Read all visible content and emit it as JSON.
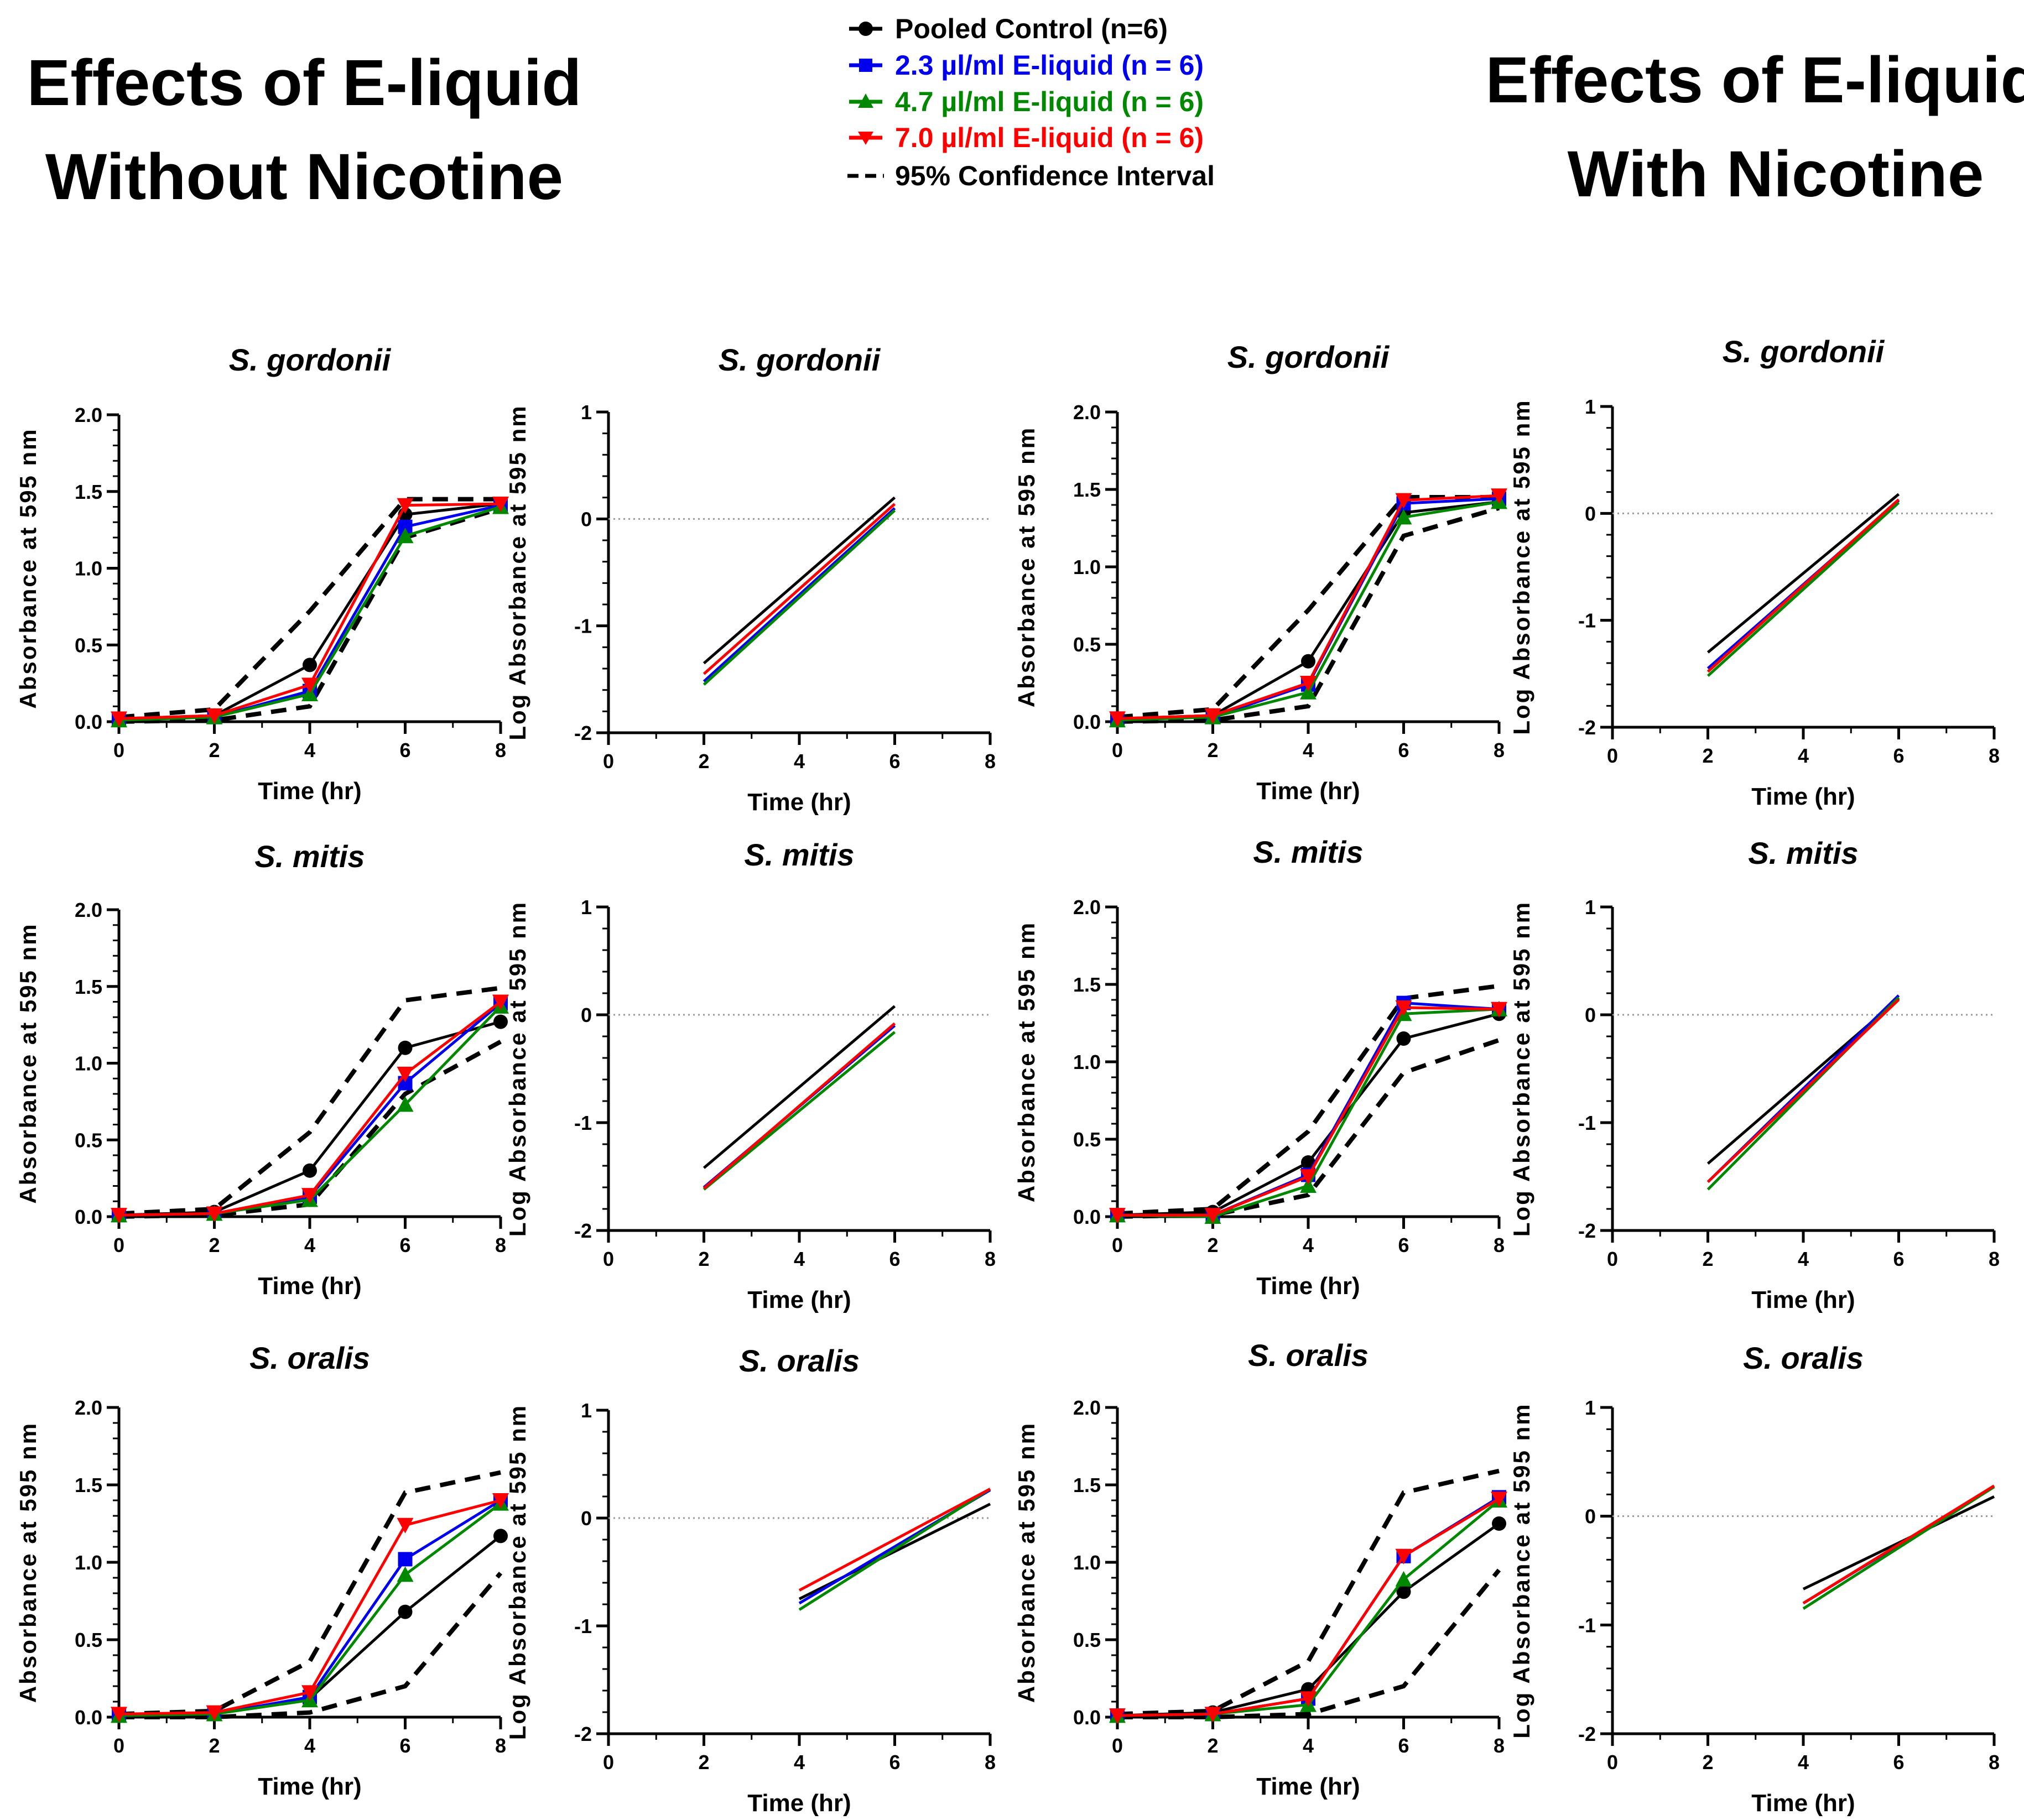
{
  "titles": {
    "left": [
      "Effects of E-liquid",
      "Without Nicotine"
    ],
    "right": [
      "Effects of E-liquid",
      "With Nicotine"
    ]
  },
  "legend": [
    {
      "label": "Pooled Control (n=6)",
      "color": "#000000",
      "marker": "circle"
    },
    {
      "label": "2.3 µl/ml E-liquid (n = 6)",
      "color": "#0000ee",
      "marker": "square"
    },
    {
      "label": "4.7 µl/ml E-liquid (n = 6)",
      "color": "#008800",
      "marker": "triangle-up"
    },
    {
      "label": "7.0 µl/ml E-liquid (n = 6)",
      "color": "#ff0000",
      "marker": "triangle-down"
    },
    {
      "label": "95% Confidence Interval",
      "color": "#000000",
      "marker": "dashed"
    }
  ],
  "colors": {
    "control": "#000000",
    "low": "#0000ee",
    "mid": "#008800",
    "high": "#ff0000",
    "ci": "#000000",
    "ref": "#999999"
  },
  "chart_data": [
    {
      "id": "wo-gordonii-abs",
      "type": "line",
      "title": "S. gordonii",
      "xlabel": "Time (hr)",
      "ylabel": "Absorbance at 595 nm",
      "xlim": [
        0,
        8
      ],
      "ylim": [
        0,
        2
      ],
      "xticks": [
        0,
        2,
        4,
        6,
        8
      ],
      "yticks": [
        "0.0",
        "0.5",
        "1.0",
        "1.5",
        "2.0"
      ],
      "x": [
        0,
        2,
        4,
        6,
        8
      ],
      "series": [
        {
          "name": "Pooled Control (n=6)",
          "color": "#000000",
          "marker": "circle",
          "values": [
            0.02,
            0.04,
            0.37,
            1.35,
            1.42
          ]
        },
        {
          "name": "2.3 µl/ml E-liquid (n = 6)",
          "color": "#0000ee",
          "marker": "square",
          "values": [
            0.02,
            0.03,
            0.2,
            1.27,
            1.41
          ]
        },
        {
          "name": "4.7 µl/ml E-liquid (n = 6)",
          "color": "#008800",
          "marker": "triangle-up",
          "values": [
            0.01,
            0.03,
            0.18,
            1.21,
            1.4
          ]
        },
        {
          "name": "7.0 µl/ml E-liquid (n = 6)",
          "color": "#ff0000",
          "marker": "triangle-down",
          "values": [
            0.02,
            0.04,
            0.24,
            1.41,
            1.42
          ]
        }
      ],
      "ci": [
        [
          0.03,
          0.08,
          0.72,
          1.45,
          1.45
        ],
        [
          0.0,
          0.01,
          0.1,
          1.2,
          1.39
        ]
      ]
    },
    {
      "id": "wo-gordonii-log",
      "type": "line",
      "title": "S. gordonii",
      "xlabel": "Time (hr)",
      "ylabel": "Log Absorbance at 595 nm",
      "xlim": [
        0,
        8
      ],
      "ylim": [
        -2,
        1
      ],
      "xticks": [
        0,
        2,
        4,
        6,
        8
      ],
      "yticks": [
        "-2",
        "-1",
        "0",
        "1"
      ],
      "refline": 0,
      "x": [
        2,
        6
      ],
      "series": [
        {
          "name": "Pooled Control (n=6)",
          "color": "#000000",
          "values": [
            -1.35,
            0.2
          ]
        },
        {
          "name": "2.3 µl/ml E-liquid (n = 6)",
          "color": "#0000ee",
          "values": [
            -1.52,
            0.1
          ]
        },
        {
          "name": "4.7 µl/ml E-liquid (n = 6)",
          "color": "#008800",
          "values": [
            -1.55,
            0.08
          ]
        },
        {
          "name": "7.0 µl/ml E-liquid (n = 6)",
          "color": "#ff0000",
          "values": [
            -1.45,
            0.14
          ]
        }
      ]
    },
    {
      "id": "w-gordonii-abs",
      "type": "line",
      "title": "S. gordonii",
      "xlabel": "Time (hr)",
      "ylabel": "Absorbance at 595 nm",
      "xlim": [
        0,
        8
      ],
      "ylim": [
        0,
        2
      ],
      "xticks": [
        0,
        2,
        4,
        6,
        8
      ],
      "yticks": [
        "0.0",
        "0.5",
        "1.0",
        "1.5",
        "2.0"
      ],
      "x": [
        0,
        2,
        4,
        6,
        8
      ],
      "series": [
        {
          "name": "Pooled Control (n=6)",
          "color": "#000000",
          "marker": "circle",
          "values": [
            0.02,
            0.04,
            0.39,
            1.35,
            1.42
          ]
        },
        {
          "name": "2.3 µl/ml E-liquid (n = 6)",
          "color": "#0000ee",
          "marker": "square",
          "values": [
            0.02,
            0.03,
            0.24,
            1.41,
            1.44
          ]
        },
        {
          "name": "4.7 µl/ml E-liquid (n = 6)",
          "color": "#008800",
          "marker": "triangle-up",
          "values": [
            0.01,
            0.03,
            0.19,
            1.32,
            1.42
          ]
        },
        {
          "name": "7.0 µl/ml E-liquid (n = 6)",
          "color": "#ff0000",
          "marker": "triangle-down",
          "values": [
            0.02,
            0.04,
            0.25,
            1.43,
            1.46
          ]
        }
      ],
      "ci": [
        [
          0.03,
          0.08,
          0.72,
          1.45,
          1.45
        ],
        [
          0.0,
          0.01,
          0.1,
          1.2,
          1.38
        ]
      ]
    },
    {
      "id": "w-gordonii-log",
      "type": "line",
      "title": "S. gordonii",
      "xlabel": "Time (hr)",
      "ylabel": "Log Absorbance at 595 nm",
      "xlim": [
        0,
        8
      ],
      "ylim": [
        -2,
        1
      ],
      "xticks": [
        0,
        2,
        4,
        6,
        8
      ],
      "yticks": [
        "-2",
        "-1",
        "0",
        "1"
      ],
      "refline": 0,
      "x": [
        2,
        6
      ],
      "series": [
        {
          "name": "Pooled Control (n=6)",
          "color": "#000000",
          "values": [
            -1.3,
            0.18
          ]
        },
        {
          "name": "2.3 µl/ml E-liquid (n = 6)",
          "color": "#0000ee",
          "values": [
            -1.45,
            0.12
          ]
        },
        {
          "name": "4.7 µl/ml E-liquid (n = 6)",
          "color": "#008800",
          "values": [
            -1.52,
            0.1
          ]
        },
        {
          "name": "7.0 µl/ml E-liquid (n = 6)",
          "color": "#ff0000",
          "values": [
            -1.48,
            0.13
          ]
        }
      ]
    },
    {
      "id": "wo-mitis-abs",
      "type": "line",
      "title": "S. mitis",
      "xlabel": "Time (hr)",
      "ylabel": "Absorbance at 595 nm",
      "xlim": [
        0,
        8
      ],
      "ylim": [
        0,
        2
      ],
      "xticks": [
        0,
        2,
        4,
        6,
        8
      ],
      "yticks": [
        "0.0",
        "0.5",
        "1.0",
        "1.5",
        "2.0"
      ],
      "x": [
        0,
        2,
        4,
        6,
        8
      ],
      "series": [
        {
          "name": "Pooled Control (n=6)",
          "color": "#000000",
          "marker": "circle",
          "values": [
            0.01,
            0.03,
            0.3,
            1.1,
            1.27
          ]
        },
        {
          "name": "2.3 µl/ml E-liquid (n = 6)",
          "color": "#0000ee",
          "marker": "square",
          "values": [
            0.01,
            0.02,
            0.13,
            0.87,
            1.39
          ]
        },
        {
          "name": "4.7 µl/ml E-liquid (n = 6)",
          "color": "#008800",
          "marker": "triangle-up",
          "values": [
            0.01,
            0.02,
            0.11,
            0.73,
            1.37
          ]
        },
        {
          "name": "7.0 µl/ml E-liquid (n = 6)",
          "color": "#ff0000",
          "marker": "triangle-down",
          "values": [
            0.01,
            0.02,
            0.14,
            0.93,
            1.4
          ]
        }
      ],
      "ci": [
        [
          0.02,
          0.05,
          0.55,
          1.41,
          1.49
        ],
        [
          0.0,
          0.01,
          0.08,
          0.8,
          1.14
        ]
      ]
    },
    {
      "id": "wo-mitis-log",
      "type": "line",
      "title": "S. mitis",
      "xlabel": "Time (hr)",
      "ylabel": "Log Absorbance at 595 nm",
      "xlim": [
        0,
        8
      ],
      "ylim": [
        -2,
        1
      ],
      "xticks": [
        0,
        2,
        4,
        6,
        8
      ],
      "yticks": [
        "-2",
        "-1",
        "0",
        "1"
      ],
      "refline": 0,
      "x": [
        2,
        6
      ],
      "series": [
        {
          "name": "Pooled Control (n=6)",
          "color": "#000000",
          "values": [
            -1.42,
            0.08
          ]
        },
        {
          "name": "2.3 µl/ml E-liquid (n = 6)",
          "color": "#0000ee",
          "values": [
            -1.6,
            -0.1
          ]
        },
        {
          "name": "4.7 µl/ml E-liquid (n = 6)",
          "color": "#008800",
          "values": [
            -1.62,
            -0.16
          ]
        },
        {
          "name": "7.0 µl/ml E-liquid (n = 6)",
          "color": "#ff0000",
          "values": [
            -1.61,
            -0.08
          ]
        }
      ]
    },
    {
      "id": "w-mitis-abs",
      "type": "line",
      "title": "S. mitis",
      "xlabel": "Time (hr)",
      "ylabel": "Absorbance at 595 nm",
      "xlim": [
        0,
        8
      ],
      "ylim": [
        0,
        2
      ],
      "xticks": [
        0,
        2,
        4,
        6,
        8
      ],
      "yticks": [
        "0.0",
        "0.5",
        "1.0",
        "1.5",
        "2.0"
      ],
      "x": [
        0,
        2,
        4,
        6,
        8
      ],
      "series": [
        {
          "name": "Pooled Control (n=6)",
          "color": "#000000",
          "marker": "circle",
          "values": [
            0.01,
            0.03,
            0.35,
            1.15,
            1.31
          ]
        },
        {
          "name": "2.3 µl/ml E-liquid (n = 6)",
          "color": "#0000ee",
          "marker": "square",
          "values": [
            0.01,
            0.01,
            0.27,
            1.38,
            1.34
          ]
        },
        {
          "name": "4.7 µl/ml E-liquid (n = 6)",
          "color": "#008800",
          "marker": "triangle-up",
          "values": [
            0.01,
            0.0,
            0.2,
            1.31,
            1.34
          ]
        },
        {
          "name": "7.0 µl/ml E-liquid (n = 6)",
          "color": "#ff0000",
          "marker": "triangle-down",
          "values": [
            0.01,
            0.01,
            0.26,
            1.35,
            1.34
          ]
        }
      ],
      "ci": [
        [
          0.02,
          0.05,
          0.55,
          1.41,
          1.49
        ],
        [
          0.0,
          0.01,
          0.14,
          0.93,
          1.14
        ]
      ]
    },
    {
      "id": "w-mitis-log",
      "type": "line",
      "title": "S. mitis",
      "xlabel": "Time (hr)",
      "ylabel": "Log Absorbance at 595 nm",
      "xlim": [
        0,
        8
      ],
      "ylim": [
        -2,
        1
      ],
      "xticks": [
        0,
        2,
        4,
        6,
        8
      ],
      "yticks": [
        "-2",
        "-1",
        "0",
        "1"
      ],
      "refline": 0,
      "x": [
        2,
        6
      ],
      "series": [
        {
          "name": "Pooled Control (n=6)",
          "color": "#000000",
          "values": [
            -1.38,
            0.15
          ]
        },
        {
          "name": "2.3 µl/ml E-liquid (n = 6)",
          "color": "#0000ee",
          "values": [
            -1.55,
            0.18
          ]
        },
        {
          "name": "4.7 µl/ml E-liquid (n = 6)",
          "color": "#008800",
          "values": [
            -1.62,
            0.16
          ]
        },
        {
          "name": "7.0 µl/ml E-liquid (n = 6)",
          "color": "#ff0000",
          "values": [
            -1.55,
            0.14
          ]
        }
      ]
    },
    {
      "id": "wo-oralis-abs",
      "type": "line",
      "title": "S. oralis",
      "xlabel": "Time (hr)",
      "ylabel": "Absorbance at 595 nm",
      "xlim": [
        0,
        8
      ],
      "ylim": [
        0,
        2
      ],
      "xticks": [
        0,
        2,
        4,
        6,
        8
      ],
      "yticks": [
        "0.0",
        "0.5",
        "1.0",
        "1.5",
        "2.0"
      ],
      "x": [
        0,
        2,
        4,
        6,
        8
      ],
      "series": [
        {
          "name": "Pooled Control (n=6)",
          "color": "#000000",
          "marker": "circle",
          "values": [
            0.01,
            0.02,
            0.12,
            0.68,
            1.17
          ]
        },
        {
          "name": "2.3 µl/ml E-liquid (n = 6)",
          "color": "#0000ee",
          "marker": "square",
          "values": [
            0.01,
            0.02,
            0.13,
            1.02,
            1.4
          ]
        },
        {
          "name": "4.7 µl/ml E-liquid (n = 6)",
          "color": "#008800",
          "marker": "triangle-up",
          "values": [
            0.01,
            0.02,
            0.11,
            0.92,
            1.38
          ]
        },
        {
          "name": "7.0 µl/ml E-liquid (n = 6)",
          "color": "#ff0000",
          "marker": "triangle-down",
          "values": [
            0.02,
            0.03,
            0.16,
            1.24,
            1.4
          ]
        }
      ],
      "ci": [
        [
          0.02,
          0.04,
          0.36,
          1.45,
          1.58
        ],
        [
          0.0,
          0.0,
          0.03,
          0.2,
          0.93
        ]
      ]
    },
    {
      "id": "wo-oralis-log",
      "type": "line",
      "title": "S. oralis",
      "xlabel": "Time (hr)",
      "ylabel": "Log Absorbance at 595 nm",
      "xlim": [
        0,
        8
      ],
      "ylim": [
        -2,
        1
      ],
      "xticks": [
        0,
        2,
        4,
        6,
        8
      ],
      "yticks": [
        "-2",
        "-1",
        "0",
        "1"
      ],
      "refline": 0,
      "x": [
        4,
        8
      ],
      "series": [
        {
          "name": "Pooled Control (n=6)",
          "color": "#000000",
          "values": [
            -0.75,
            0.13
          ]
        },
        {
          "name": "2.3 µl/ml E-liquid (n = 6)",
          "color": "#0000ee",
          "values": [
            -0.79,
            0.26
          ]
        },
        {
          "name": "4.7 µl/ml E-liquid (n = 6)",
          "color": "#008800",
          "values": [
            -0.85,
            0.27
          ]
        },
        {
          "name": "7.0 µl/ml E-liquid (n = 6)",
          "color": "#ff0000",
          "values": [
            -0.67,
            0.27
          ]
        }
      ]
    },
    {
      "id": "w-oralis-abs",
      "type": "line",
      "title": "S. oralis",
      "xlabel": "Time (hr)",
      "ylabel": "Absorbance at 595 nm",
      "xlim": [
        0,
        8
      ],
      "ylim": [
        0,
        2
      ],
      "xticks": [
        0,
        2,
        4,
        6,
        8
      ],
      "yticks": [
        "0.0",
        "0.5",
        "1.0",
        "1.5",
        "2.0"
      ],
      "x": [
        0,
        2,
        4,
        6,
        8
      ],
      "series": [
        {
          "name": "Pooled Control (n=6)",
          "color": "#000000",
          "marker": "circle",
          "values": [
            0.01,
            0.03,
            0.18,
            0.81,
            1.25
          ]
        },
        {
          "name": "2.3 µl/ml E-liquid (n = 6)",
          "color": "#0000ee",
          "marker": "square",
          "values": [
            0.01,
            0.02,
            0.12,
            1.04,
            1.42
          ]
        },
        {
          "name": "4.7 µl/ml E-liquid (n = 6)",
          "color": "#008800",
          "marker": "triangle-up",
          "values": [
            0.01,
            0.02,
            0.08,
            0.89,
            1.4
          ]
        },
        {
          "name": "7.0 µl/ml E-liquid (n = 6)",
          "color": "#ff0000",
          "marker": "triangle-down",
          "values": [
            0.01,
            0.02,
            0.12,
            1.04,
            1.41
          ]
        }
      ],
      "ci": [
        [
          0.02,
          0.04,
          0.36,
          1.45,
          1.59
        ],
        [
          0.0,
          0.0,
          0.02,
          0.2,
          0.95
        ]
      ]
    },
    {
      "id": "w-oralis-log",
      "type": "line",
      "title": "S. oralis",
      "xlabel": "Time (hr)",
      "ylabel": "Log Absorbance at 595 nm",
      "xlim": [
        0,
        8
      ],
      "ylim": [
        -2,
        1
      ],
      "xticks": [
        0,
        2,
        4,
        6,
        8
      ],
      "yticks": [
        "-2",
        "-1",
        "0",
        "1"
      ],
      "refline": 0,
      "x": [
        4,
        8
      ],
      "series": [
        {
          "name": "Pooled Control (n=6)",
          "color": "#000000",
          "values": [
            -0.67,
            0.18
          ]
        },
        {
          "name": "2.3 µl/ml E-liquid (n = 6)",
          "color": "#0000ee",
          "values": [
            -0.8,
            0.27
          ]
        },
        {
          "name": "4.7 µl/ml E-liquid (n = 6)",
          "color": "#008800",
          "values": [
            -0.85,
            0.27
          ]
        },
        {
          "name": "7.0 µl/ml E-liquid (n = 6)",
          "color": "#ff0000",
          "values": [
            -0.8,
            0.28
          ]
        }
      ]
    }
  ]
}
